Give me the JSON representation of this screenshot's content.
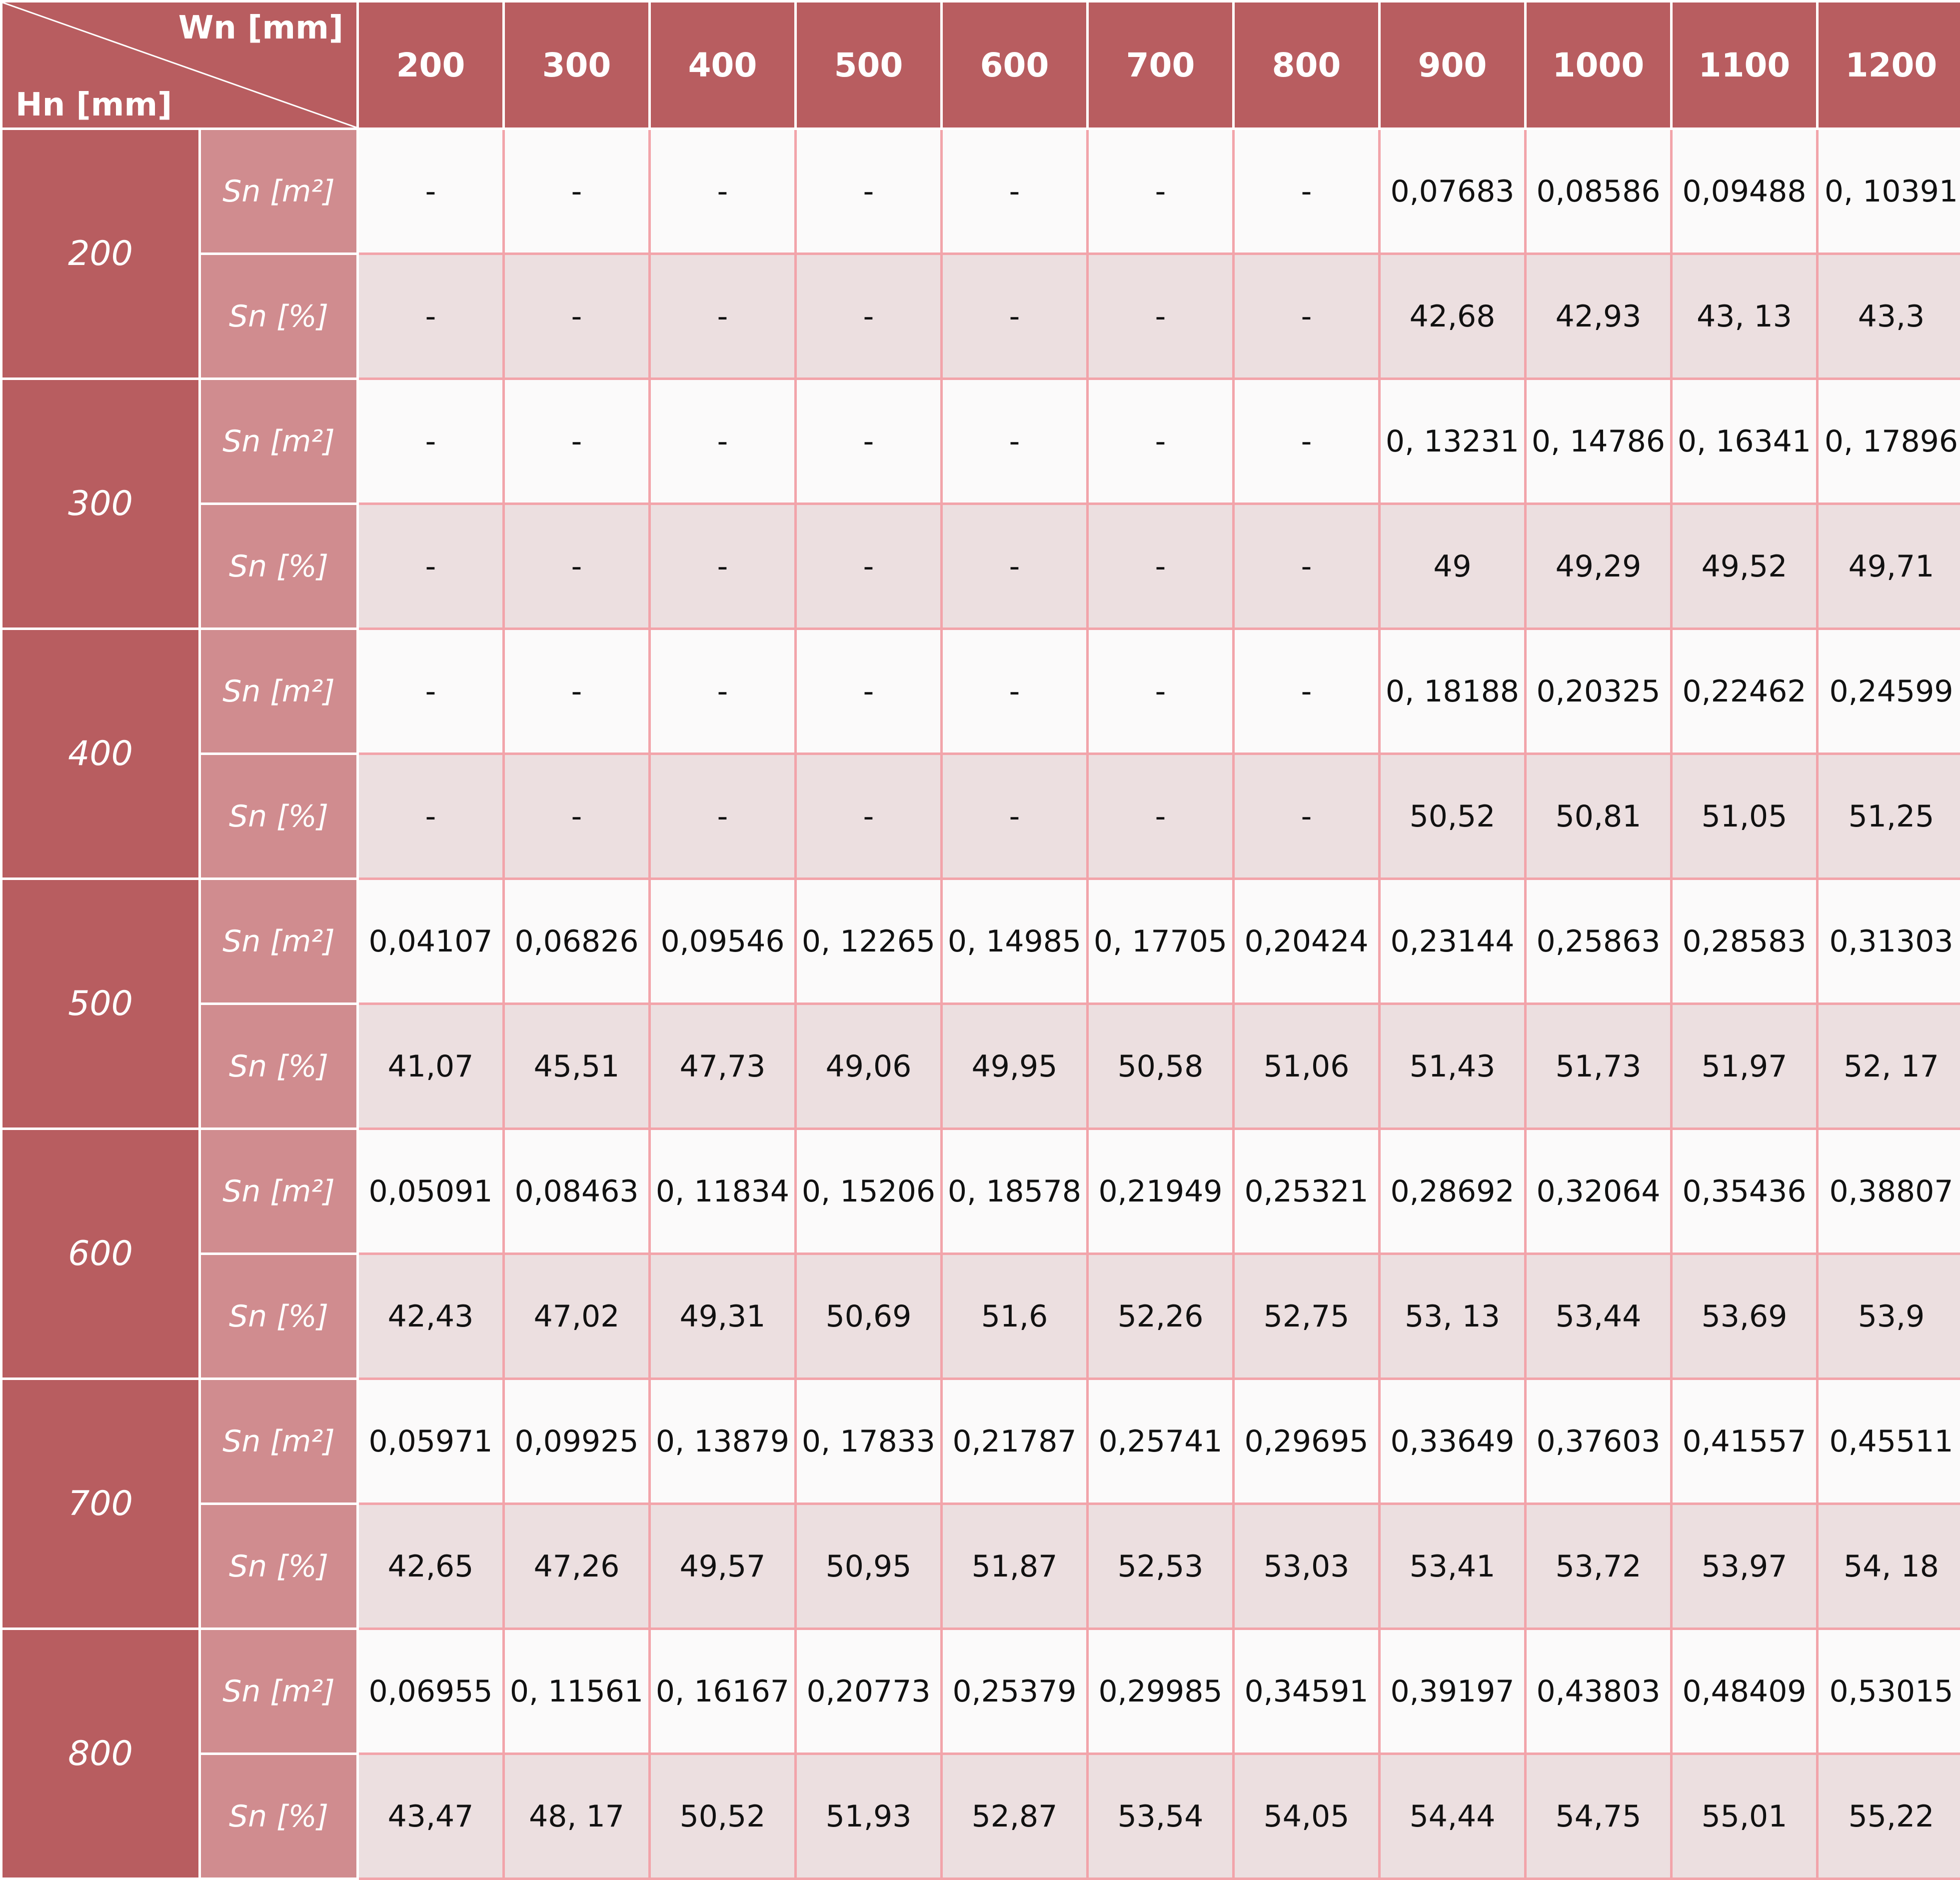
{
  "header": {
    "wn_label": "Wn [mm]",
    "hn_label": "Hn [mm]",
    "columns": [
      "200",
      "300",
      "400",
      "500",
      "600",
      "700",
      "800",
      "900",
      "1000",
      "1100",
      "1200"
    ]
  },
  "unit_labels": {
    "m2": "Sn [m²]",
    "pct": "Sn [%]"
  },
  "rows": [
    {
      "hn": "200",
      "m2": [
        "-",
        "-",
        "-",
        "-",
        "-",
        "-",
        "-",
        "0,07683",
        "0,08586",
        "0,09488",
        "0, 10391"
      ],
      "pct": [
        "-",
        "-",
        "-",
        "-",
        "-",
        "-",
        "-",
        "42,68",
        "42,93",
        "43, 13",
        "43,3"
      ]
    },
    {
      "hn": "300",
      "m2": [
        "-",
        "-",
        "-",
        "-",
        "-",
        "-",
        "-",
        "0, 13231",
        "0, 14786",
        "0, 16341",
        "0, 17896"
      ],
      "pct": [
        "-",
        "-",
        "-",
        "-",
        "-",
        "-",
        "-",
        "49",
        "49,29",
        "49,52",
        "49,71"
      ]
    },
    {
      "hn": "400",
      "m2": [
        "-",
        "-",
        "-",
        "-",
        "-",
        "-",
        "-",
        "0, 18188",
        "0,20325",
        "0,22462",
        "0,24599"
      ],
      "pct": [
        "-",
        "-",
        "-",
        "-",
        "-",
        "-",
        "-",
        "50,52",
        "50,81",
        "51,05",
        "51,25"
      ]
    },
    {
      "hn": "500",
      "m2": [
        "0,04107",
        "0,06826",
        "0,09546",
        "0, 12265",
        "0, 14985",
        "0, 17705",
        "0,20424",
        "0,23144",
        "0,25863",
        "0,28583",
        "0,31303"
      ],
      "pct": [
        "41,07",
        "45,51",
        "47,73",
        "49,06",
        "49,95",
        "50,58",
        "51,06",
        "51,43",
        "51,73",
        "51,97",
        "52, 17"
      ]
    },
    {
      "hn": "600",
      "m2": [
        "0,05091",
        "0,08463",
        "0, 11834",
        "0, 15206",
        "0, 18578",
        "0,21949",
        "0,25321",
        "0,28692",
        "0,32064",
        "0,35436",
        "0,38807"
      ],
      "pct": [
        "42,43",
        "47,02",
        "49,31",
        "50,69",
        "51,6",
        "52,26",
        "52,75",
        "53, 13",
        "53,44",
        "53,69",
        "53,9"
      ]
    },
    {
      "hn": "700",
      "m2": [
        "0,05971",
        "0,09925",
        "0, 13879",
        "0, 17833",
        "0,21787",
        "0,25741",
        "0,29695",
        "0,33649",
        "0,37603",
        "0,41557",
        "0,45511"
      ],
      "pct": [
        "42,65",
        "47,26",
        "49,57",
        "50,95",
        "51,87",
        "52,53",
        "53,03",
        "53,41",
        "53,72",
        "53,97",
        "54, 18"
      ]
    },
    {
      "hn": "800",
      "m2": [
        "0,06955",
        "0, 11561",
        "0, 16167",
        "0,20773",
        "0,25379",
        "0,29985",
        "0,34591",
        "0,39197",
        "0,43803",
        "0,48409",
        "0,53015"
      ],
      "pct": [
        "43,47",
        "48, 17",
        "50,52",
        "51,93",
        "52,87",
        "53,54",
        "54,05",
        "54,44",
        "54,75",
        "55,01",
        "55,22"
      ]
    }
  ],
  "colors": {
    "header_bg": "#b85d60",
    "unit_bg": "#d08c8f",
    "grid": "#f2a4aa",
    "m2_row_bg": "#fbfafa",
    "pct_row_bg": "#ecdfe0"
  }
}
